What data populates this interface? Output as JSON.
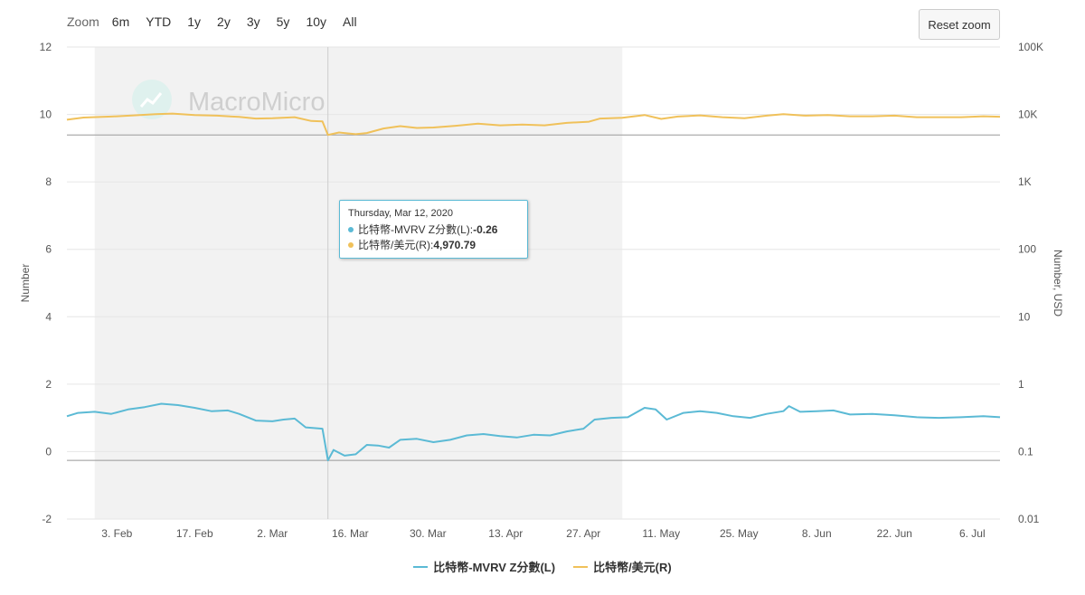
{
  "zoom": {
    "label": "Zoom",
    "buttons": [
      "6m",
      "YTD",
      "1y",
      "2y",
      "3y",
      "5y",
      "10y",
      "All"
    ],
    "reset_label": "Reset zoom"
  },
  "watermark": "MacroMicro",
  "colors": {
    "zscore": "#5bbad5",
    "price": "#f0c15a",
    "shade": "#f2f2f2",
    "grid": "#e6e6e6"
  },
  "tooltip": {
    "date": "Thursday, Mar 12, 2020",
    "rows": [
      {
        "label": "比特幣-MVRV Z分數(L): ",
        "value": "-0.26",
        "color": "#5bbad5"
      },
      {
        "label": "比特幣/美元(R): ",
        "value": "4,970.79",
        "color": "#f0c15a"
      }
    ]
  },
  "legend": [
    {
      "label": "比特幣-MVRV Z分數(L)",
      "color": "#5bbad5"
    },
    {
      "label": "比特幣/美元(R)",
      "color": "#f0c15a"
    }
  ],
  "chart_data": {
    "type": "line",
    "xlabel": "",
    "ylabel_left": "Number",
    "ylabel_right": "Number, USD",
    "x_range": [
      "2020-01-25",
      "2020-07-11"
    ],
    "x_ticks": [
      {
        "date": "2020-02-03",
        "label": "3. Feb"
      },
      {
        "date": "2020-02-17",
        "label": "17. Feb"
      },
      {
        "date": "2020-03-02",
        "label": "2. Mar"
      },
      {
        "date": "2020-03-16",
        "label": "16. Mar"
      },
      {
        "date": "2020-03-30",
        "label": "30. Mar"
      },
      {
        "date": "2020-04-13",
        "label": "13. Apr"
      },
      {
        "date": "2020-04-27",
        "label": "27. Apr"
      },
      {
        "date": "2020-05-11",
        "label": "11. May"
      },
      {
        "date": "2020-05-25",
        "label": "25. May"
      },
      {
        "date": "2020-06-08",
        "label": "8. Jun"
      },
      {
        "date": "2020-06-22",
        "label": "22. Jun"
      },
      {
        "date": "2020-07-06",
        "label": "6. Jul"
      }
    ],
    "y_left": {
      "range": [
        -2,
        12
      ],
      "ticks": [
        -2,
        0,
        2,
        4,
        6,
        8,
        10,
        12
      ],
      "labels": [
        "-2",
        "0",
        "2",
        "4",
        "6",
        "8",
        "10",
        "12"
      ]
    },
    "y_right": {
      "scale": "log",
      "range": [
        0.01,
        100000
      ],
      "ticks": [
        0.01,
        0.1,
        1,
        10,
        100,
        1000,
        10000,
        100000
      ],
      "labels": [
        "0.01",
        "0.1",
        "1",
        "10",
        "100",
        "1K",
        "10K",
        "100K"
      ]
    },
    "shaded_band": [
      "2020-01-30",
      "2020-05-04"
    ],
    "crosshair_date": "2020-03-12",
    "plot_lines": [
      {
        "axis": "left",
        "value": -0.26
      },
      {
        "axis": "right",
        "value": 4970.79
      }
    ],
    "series": [
      {
        "name": "比特幣-MVRV Z分數(L)",
        "axis": "left",
        "points": [
          [
            "2020-01-25",
            1.05
          ],
          [
            "2020-01-27",
            1.15
          ],
          [
            "2020-01-30",
            1.18
          ],
          [
            "2020-02-02",
            1.12
          ],
          [
            "2020-02-05",
            1.25
          ],
          [
            "2020-02-08",
            1.32
          ],
          [
            "2020-02-11",
            1.42
          ],
          [
            "2020-02-14",
            1.38
          ],
          [
            "2020-02-17",
            1.3
          ],
          [
            "2020-02-20",
            1.2
          ],
          [
            "2020-02-23",
            1.22
          ],
          [
            "2020-02-25",
            1.12
          ],
          [
            "2020-02-28",
            0.92
          ],
          [
            "2020-03-02",
            0.9
          ],
          [
            "2020-03-04",
            0.95
          ],
          [
            "2020-03-06",
            0.98
          ],
          [
            "2020-03-08",
            0.72
          ],
          [
            "2020-03-11",
            0.68
          ],
          [
            "2020-03-12",
            -0.26
          ],
          [
            "2020-03-13",
            0.05
          ],
          [
            "2020-03-15",
            -0.12
          ],
          [
            "2020-03-17",
            -0.08
          ],
          [
            "2020-03-19",
            0.2
          ],
          [
            "2020-03-21",
            0.18
          ],
          [
            "2020-03-23",
            0.12
          ],
          [
            "2020-03-25",
            0.35
          ],
          [
            "2020-03-28",
            0.38
          ],
          [
            "2020-03-31",
            0.28
          ],
          [
            "2020-04-03",
            0.35
          ],
          [
            "2020-04-06",
            0.48
          ],
          [
            "2020-04-09",
            0.52
          ],
          [
            "2020-04-12",
            0.46
          ],
          [
            "2020-04-15",
            0.42
          ],
          [
            "2020-04-18",
            0.5
          ],
          [
            "2020-04-21",
            0.48
          ],
          [
            "2020-04-24",
            0.6
          ],
          [
            "2020-04-27",
            0.68
          ],
          [
            "2020-04-29",
            0.95
          ],
          [
            "2020-05-02",
            1.0
          ],
          [
            "2020-05-05",
            1.02
          ],
          [
            "2020-05-08",
            1.3
          ],
          [
            "2020-05-10",
            1.25
          ],
          [
            "2020-05-12",
            0.95
          ],
          [
            "2020-05-15",
            1.15
          ],
          [
            "2020-05-18",
            1.2
          ],
          [
            "2020-05-21",
            1.15
          ],
          [
            "2020-05-24",
            1.05
          ],
          [
            "2020-05-27",
            1.0
          ],
          [
            "2020-05-30",
            1.12
          ],
          [
            "2020-06-02",
            1.2
          ],
          [
            "2020-06-03",
            1.35
          ],
          [
            "2020-06-05",
            1.18
          ],
          [
            "2020-06-08",
            1.2
          ],
          [
            "2020-06-11",
            1.22
          ],
          [
            "2020-06-14",
            1.1
          ],
          [
            "2020-06-18",
            1.12
          ],
          [
            "2020-06-22",
            1.08
          ],
          [
            "2020-06-26",
            1.02
          ],
          [
            "2020-06-30",
            1.0
          ],
          [
            "2020-07-04",
            1.02
          ],
          [
            "2020-07-08",
            1.05
          ],
          [
            "2020-07-11",
            1.02
          ]
        ]
      },
      {
        "name": "比特幣/美元(R)",
        "axis": "right",
        "points": [
          [
            "2020-01-25",
            8350
          ],
          [
            "2020-01-28",
            9000
          ],
          [
            "2020-02-02",
            9300
          ],
          [
            "2020-02-06",
            9700
          ],
          [
            "2020-02-10",
            10100
          ],
          [
            "2020-02-13",
            10300
          ],
          [
            "2020-02-17",
            9800
          ],
          [
            "2020-02-21",
            9600
          ],
          [
            "2020-02-25",
            9200
          ],
          [
            "2020-02-28",
            8700
          ],
          [
            "2020-03-02",
            8800
          ],
          [
            "2020-03-06",
            9100
          ],
          [
            "2020-03-09",
            8000
          ],
          [
            "2020-03-11",
            7900
          ],
          [
            "2020-03-12",
            4970.79
          ],
          [
            "2020-03-14",
            5400
          ],
          [
            "2020-03-17",
            5100
          ],
          [
            "2020-03-19",
            5300
          ],
          [
            "2020-03-22",
            6200
          ],
          [
            "2020-03-25",
            6700
          ],
          [
            "2020-03-28",
            6300
          ],
          [
            "2020-03-31",
            6400
          ],
          [
            "2020-04-04",
            6800
          ],
          [
            "2020-04-08",
            7300
          ],
          [
            "2020-04-12",
            6900
          ],
          [
            "2020-04-16",
            7100
          ],
          [
            "2020-04-20",
            6900
          ],
          [
            "2020-04-24",
            7500
          ],
          [
            "2020-04-28",
            7800
          ],
          [
            "2020-04-30",
            8700
          ],
          [
            "2020-05-04",
            8900
          ],
          [
            "2020-05-08",
            9800
          ],
          [
            "2020-05-11",
            8600
          ],
          [
            "2020-05-14",
            9300
          ],
          [
            "2020-05-18",
            9700
          ],
          [
            "2020-05-22",
            9100
          ],
          [
            "2020-05-26",
            8800
          ],
          [
            "2020-05-30",
            9600
          ],
          [
            "2020-06-02",
            10100
          ],
          [
            "2020-06-06",
            9600
          ],
          [
            "2020-06-10",
            9800
          ],
          [
            "2020-06-14",
            9400
          ],
          [
            "2020-06-18",
            9400
          ],
          [
            "2020-06-22",
            9600
          ],
          [
            "2020-06-26",
            9100
          ],
          [
            "2020-06-30",
            9100
          ],
          [
            "2020-07-04",
            9100
          ],
          [
            "2020-07-08",
            9400
          ],
          [
            "2020-07-11",
            9250
          ]
        ]
      }
    ]
  }
}
